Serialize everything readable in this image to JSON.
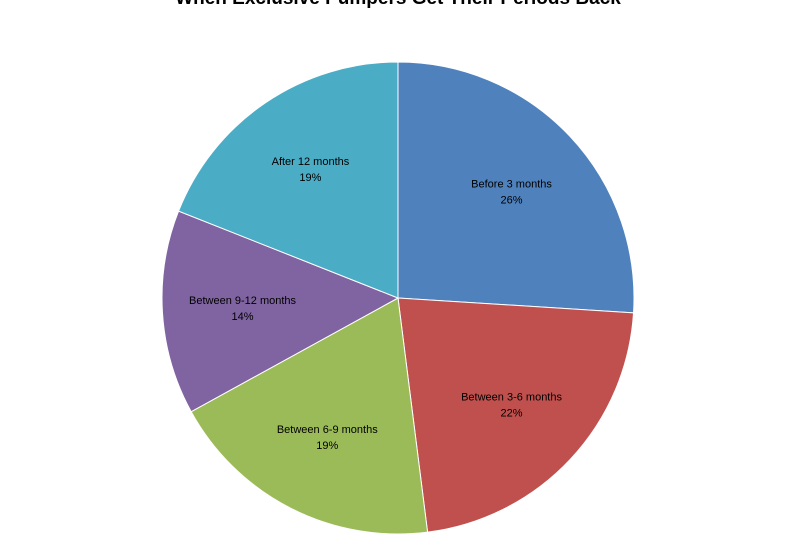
{
  "chart_data": {
    "type": "pie",
    "title": "When Exclusive Pumpers Get Their Periods Back",
    "legend": "none",
    "slices": [
      {
        "label": "Before 3 months",
        "percent_label": "26%",
        "value": 26,
        "color": "#4F81BD"
      },
      {
        "label": "Between  3-6 months",
        "percent_label": "22%",
        "value": 22,
        "color": "#C0504D"
      },
      {
        "label": "Between  6-9 months",
        "percent_label": "19%",
        "value": 19,
        "color": "#9BBB59"
      },
      {
        "label": "Between  9-12 months",
        "percent_label": "14%",
        "value": 14,
        "color": "#8064A2"
      },
      {
        "label": "After  12 months",
        "percent_label": "19%",
        "value": 19,
        "color": "#4BACC6"
      }
    ]
  }
}
